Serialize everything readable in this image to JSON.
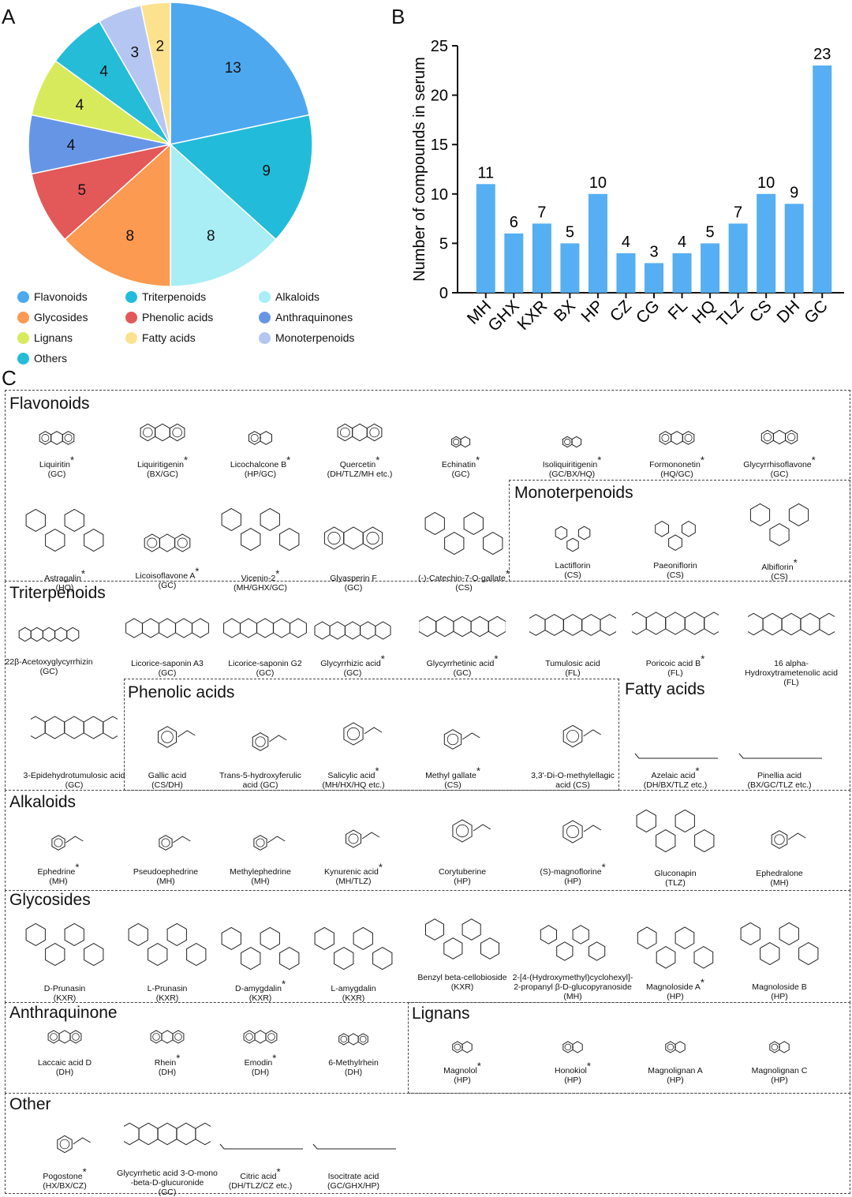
{
  "panels": {
    "a": "A",
    "b": "B",
    "c": "C"
  },
  "pie": {
    "type": "pie",
    "slices": [
      {
        "label": "13",
        "value": 13,
        "color": "#4EA8F0"
      },
      {
        "label": "9",
        "value": 9,
        "color": "#22BCDA"
      },
      {
        "label": "8",
        "value": 8,
        "color": "#A9EEF5"
      },
      {
        "label": "8",
        "value": 8,
        "color": "#FB9A50"
      },
      {
        "label": "5",
        "value": 5,
        "color": "#E35858"
      },
      {
        "label": "4",
        "value": 4,
        "color": "#6795E6"
      },
      {
        "label": "4",
        "value": 4,
        "color": "#D7EA5C"
      },
      {
        "label": "4",
        "value": 4,
        "color": "#25BCD8"
      },
      {
        "label": "3",
        "value": 3,
        "color": "#B6C6F2"
      },
      {
        "label": "2",
        "value": 2,
        "color": "#FCE28F"
      }
    ]
  },
  "legend": [
    {
      "label": "Flavonoids",
      "color": "#4EA8F0"
    },
    {
      "label": "Triterpenoids",
      "color": "#22BCDA"
    },
    {
      "label": "Alkaloids",
      "color": "#A9EEF5"
    },
    {
      "label": "Glycosides",
      "color": "#FB9A50"
    },
    {
      "label": "Phenolic acids",
      "color": "#E35858"
    },
    {
      "label": "Anthraquinones",
      "color": "#6795E6"
    },
    {
      "label": "Lignans",
      "color": "#D7EA5C"
    },
    {
      "label": "Fatty acids",
      "color": "#FCE28F"
    },
    {
      "label": "Monoterpenoids",
      "color": "#B6C6F2"
    },
    {
      "label": "Others",
      "color": "#25BCD8"
    }
  ],
  "chart_data": {
    "type": "bar",
    "categories": [
      "MH",
      "GHX",
      "KXR",
      "BX",
      "HP",
      "CZ",
      "CG",
      "FL",
      "HQ",
      "TLZ",
      "CS",
      "DH",
      "GC"
    ],
    "values": [
      11,
      6,
      7,
      5,
      10,
      4,
      3,
      4,
      5,
      7,
      10,
      9,
      23
    ],
    "ylabel": "Number of compounds in serum",
    "ylim": [
      0,
      25
    ],
    "yticks": [
      "0",
      "5",
      "10",
      "15",
      "20",
      "25"
    ],
    "color": "#56AFF2",
    "grid": false
  },
  "sections": [
    {
      "title": "Flavonoids",
      "compounds": [
        {
          "name": "Liquiritin",
          "star": "*",
          "src": "(GC)"
        },
        {
          "name": "Liquiritigenin",
          "star": "*",
          "src": "(BX/GC)"
        },
        {
          "name": "Licochalcone B",
          "star": "*",
          "src": "(HP/GC)"
        },
        {
          "name": "Quercetin",
          "star": "*",
          "src": "(DH/TLZ/MH etc.)"
        },
        {
          "name": "Echinatin",
          "star": "*",
          "src": "(GC)"
        },
        {
          "name": "Isoliquiritigenin",
          "star": "*",
          "src": "(GC/BX/HQ)"
        },
        {
          "name": "Formononetin",
          "star": "*",
          "src": "(HQ/GC)"
        },
        {
          "name": "Glycyrrhisoflavone",
          "star": "*",
          "src": "(GC)"
        },
        {
          "name": "Astragalin",
          "star": "*",
          "src": "(HQ)"
        },
        {
          "name": "Licoisoflavone A",
          "star": "*",
          "src": "(GC)"
        },
        {
          "name": "Vicenin-2",
          "star": "*",
          "src": "(MH/GHX/GC)"
        },
        {
          "name": "Glyasperin F",
          "star": "",
          "src": "(GC)"
        },
        {
          "name": "(-)-Catechin-7-O-gallate",
          "star": "*",
          "src": "(CS)"
        }
      ]
    },
    {
      "title": "Monoterpenoids",
      "compounds": [
        {
          "name": "Lactiflorin",
          "star": "",
          "src": "(CS)"
        },
        {
          "name": "Paeoniflorin",
          "star": "",
          "src": "(CS)"
        },
        {
          "name": "Albiflorin",
          "star": "*",
          "src": "(CS)"
        }
      ]
    },
    {
      "title": "Triterpenoids",
      "compounds": [
        {
          "name": "22β-Acetoxyglycyrrhizin",
          "star": "",
          "src": "(GC)"
        },
        {
          "name": "Licorice-saponin A3",
          "star": "",
          "src": "(GC)"
        },
        {
          "name": "Licorice-saponin G2",
          "star": "",
          "src": "(GC)"
        },
        {
          "name": "Glycyrrhizic acid",
          "star": "*",
          "src": "(GC)"
        },
        {
          "name": "Glycyrrhetinic acid",
          "star": "*",
          "src": "(GC)"
        },
        {
          "name": "Tumulosic acid",
          "star": "",
          "src": "(FL)"
        },
        {
          "name": "Poricoic acid B",
          "star": "*",
          "src": "(FL)"
        },
        {
          "name": "16 alpha-Hydroxytrametenolic acid",
          "star": "",
          "src": "(FL)"
        },
        {
          "name": "3-Epidehydrotumulosic acid",
          "star": "",
          "src": "(GC)"
        }
      ]
    },
    {
      "title": "Phenolic acids",
      "compounds": [
        {
          "name": "Gallic acid",
          "star": "",
          "src": "(CS/DH)"
        },
        {
          "name": "Trans-5-hydroxyferulic",
          "star": "",
          "src": "acid (GC)"
        },
        {
          "name": "Salicylic acid",
          "star": "*",
          "src": "(MH/HX/HQ etc.)"
        },
        {
          "name": "Methyl gallate",
          "star": "*",
          "src": "(CS)"
        },
        {
          "name": "3,3'-Di-O-methylellagic",
          "star": "",
          "src": "acid (CS)"
        }
      ]
    },
    {
      "title": "Fatty acids",
      "compounds": [
        {
          "name": "Azelaic acid",
          "star": "*",
          "src": "(DH/BX/TLZ etc.)"
        },
        {
          "name": "Pinellia acid",
          "star": "",
          "src": "(BX/GC/TLZ etc.)"
        }
      ]
    },
    {
      "title": "Alkaloids",
      "compounds": [
        {
          "name": "Ephedrine",
          "star": "*",
          "src": "(MH)"
        },
        {
          "name": "Pseudoephedrine",
          "star": "",
          "src": "(MH)"
        },
        {
          "name": "Methylephedrine",
          "star": "",
          "src": "(MH)"
        },
        {
          "name": "Kynurenic acid",
          "star": "*",
          "src": "(MH/TLZ)"
        },
        {
          "name": "Corytuberine",
          "star": "",
          "src": "(HP)"
        },
        {
          "name": "(S)-magnoflorine",
          "star": "*",
          "src": "(HP)"
        },
        {
          "name": "Gluconapin",
          "star": "",
          "src": "(TLZ)"
        },
        {
          "name": "Ephedralone",
          "star": "",
          "src": "(MH)"
        }
      ]
    },
    {
      "title": "Glycosides",
      "compounds": [
        {
          "name": "D-Prunasin",
          "star": "",
          "src": "(KXR)"
        },
        {
          "name": "L-Prunasin",
          "star": "",
          "src": "(KXR)"
        },
        {
          "name": "D-amygdalin",
          "star": "*",
          "src": "(KXR)"
        },
        {
          "name": "L-amygdalin",
          "star": "",
          "src": "(KXR)"
        },
        {
          "name": "Benzyl beta-cellobioside",
          "star": "",
          "src": "(KXR)"
        },
        {
          "name": "2-[4-(Hydroxymethyl)cyclohexyl]-",
          "star": "",
          "src": "2-propanyl β-D-glucopyranoside"
        },
        {
          "name": "Magnoloside A",
          "star": "*",
          "src": "(HP)"
        },
        {
          "name": "Magnoloside B",
          "star": "",
          "src": "(HP)"
        }
      ]
    },
    {
      "title": "Anthraquinone",
      "compounds": [
        {
          "name": "Laccaic acid D",
          "star": "",
          "src": "(DH)"
        },
        {
          "name": "Rhein",
          "star": "*",
          "src": "(DH)"
        },
        {
          "name": "Emodin",
          "star": "*",
          "src": "(DH)"
        },
        {
          "name": "6-Methylrhein",
          "star": "",
          "src": "(DH)"
        }
      ]
    },
    {
      "title": "Lignans",
      "compounds": [
        {
          "name": "Magnolol",
          "star": "*",
          "src": "(HP)"
        },
        {
          "name": "Honokiol",
          "star": "*",
          "src": "(HP)"
        },
        {
          "name": "Magnolignan A",
          "star": "",
          "src": "(HP)"
        },
        {
          "name": "Magnolignan C",
          "star": "",
          "src": "(HP)"
        }
      ]
    },
    {
      "title": "Other",
      "compounds": [
        {
          "name": "Pogostone",
          "star": "*",
          "src": "(HX/BX/CZ)"
        },
        {
          "name": "Glycyrrhetic acid 3-O-mono",
          "star": "",
          "src": "-beta-D-glucuronide"
        },
        {
          "name": "Citric acid",
          "star": "*",
          "src": "(DH/TLZ/CZ etc.)"
        },
        {
          "name": "Isocitrate acid",
          "star": "",
          "src": "(GC/GHX/HP)"
        }
      ]
    }
  ],
  "extra_src": {
    "prunasin_glucopyranoside": "(MH)",
    "glycyrrhetic_glucuronide": "(GC)"
  }
}
